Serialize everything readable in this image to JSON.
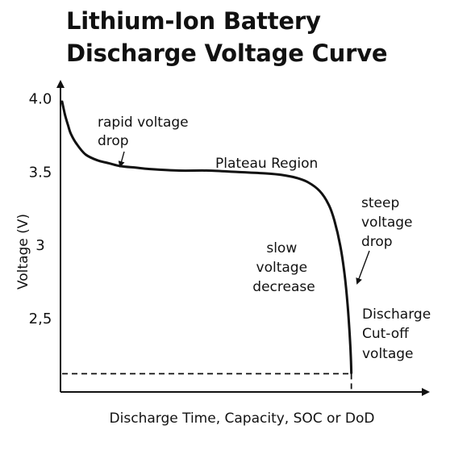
{
  "chart_data": {
    "type": "line",
    "title_lines": [
      "Lithium-Ion Battery",
      "Discharge Voltage Curve"
    ],
    "xlabel": "Discharge Time, Capacity, SOC or DoD",
    "ylabel": "Voltage (V)",
    "ylim": [
      2.0,
      4.2
    ],
    "yticks": [
      {
        "value": 4.0,
        "label": "4.0"
      },
      {
        "value": 3.5,
        "label": "3.5"
      },
      {
        "value": 3.0,
        "label": "3"
      },
      {
        "value": 2.5,
        "label": "2,5"
      }
    ],
    "grid": false,
    "x_axis_unlabeled": true,
    "xlim": [
      0,
      100
    ],
    "series": [
      {
        "x": [
          0,
          1,
          2,
          3,
          5,
          8,
          12,
          16,
          20,
          25,
          30,
          40,
          50,
          60,
          70,
          75,
          80,
          84,
          88,
          91,
          93,
          95,
          96.5,
          97.5,
          98.2,
          98.6,
          98.8
        ],
        "y": [
          3.98,
          3.89,
          3.82,
          3.76,
          3.69,
          3.62,
          3.58,
          3.56,
          3.54,
          3.53,
          3.52,
          3.51,
          3.51,
          3.5,
          3.49,
          3.48,
          3.46,
          3.43,
          3.37,
          3.28,
          3.17,
          3.0,
          2.8,
          2.6,
          2.4,
          2.25,
          2.13
        ]
      }
    ],
    "cutoff_voltage": 2.13,
    "annotations": {
      "rapid_drop": [
        "rapid voltage",
        "drop"
      ],
      "plateau": "Plateau Region",
      "slow_decrease": [
        "slow",
        "voltage",
        "decrease"
      ],
      "steep_drop": [
        "steep",
        "voltage",
        "drop"
      ],
      "cutoff": [
        "Discharge",
        "Cut-off",
        "voltage"
      ]
    },
    "line_color": "#111111"
  }
}
